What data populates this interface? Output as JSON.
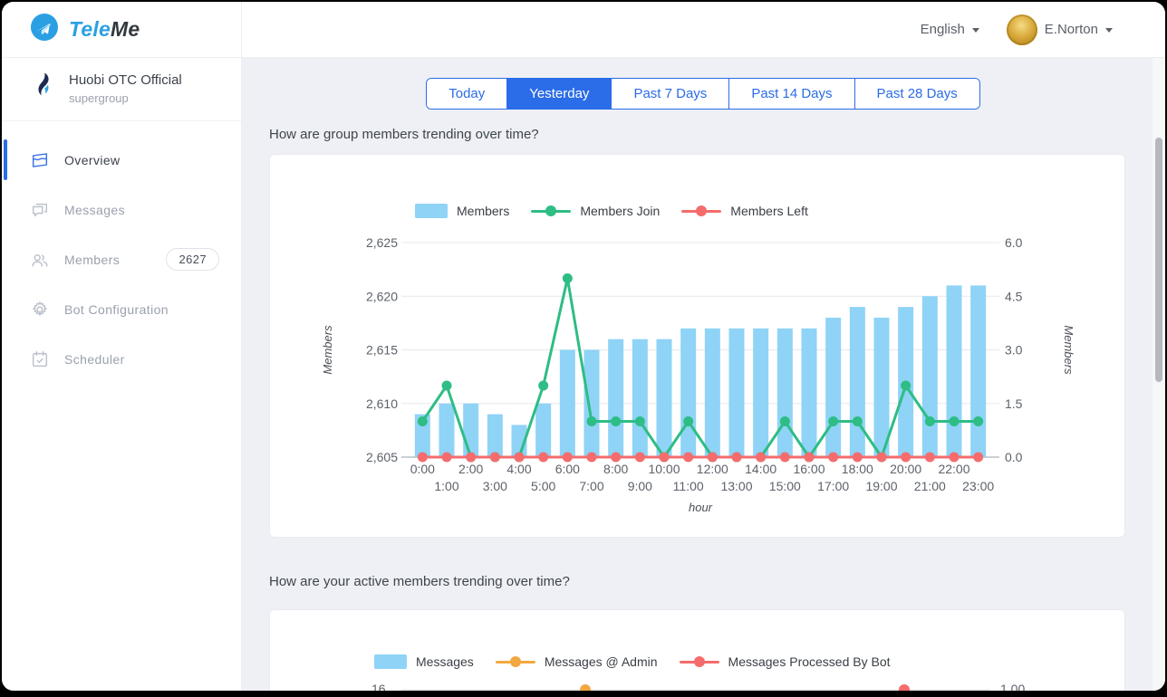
{
  "brand": {
    "name_primary": "Tele",
    "name_secondary": "Me"
  },
  "header": {
    "language_label": "English",
    "user_name": "E.Norton"
  },
  "sidebar": {
    "group_name": "Huobi OTC Official",
    "group_type": "supergroup",
    "items": [
      {
        "label": "Overview"
      },
      {
        "label": "Messages"
      },
      {
        "label": "Members",
        "badge": "2627"
      },
      {
        "label": "Bot Configuration"
      },
      {
        "label": "Scheduler"
      }
    ]
  },
  "tabs": [
    {
      "label": "Today"
    },
    {
      "label": "Yesterday"
    },
    {
      "label": "Past 7 Days"
    },
    {
      "label": "Past 14 Days"
    },
    {
      "label": "Past 28 Days"
    }
  ],
  "active_tab": "Yesterday",
  "sections": {
    "members_trend_title": "How are group members trending over time?",
    "active_members_trend_title": "How are your active members trending over time?"
  },
  "colors": {
    "accent_blue": "#2b6ce8",
    "bar_blue": "#8fd3f7",
    "line_green": "#2ebd84",
    "line_red": "#f56c6c",
    "line_orange": "#f2a840"
  },
  "chart_data": [
    {
      "type": "bar",
      "combo": "bar+line",
      "x": [
        "0:00",
        "1:00",
        "2:00",
        "3:00",
        "4:00",
        "5:00",
        "6:00",
        "7:00",
        "8:00",
        "9:00",
        "10:00",
        "11:00",
        "12:00",
        "13:00",
        "14:00",
        "15:00",
        "16:00",
        "17:00",
        "18:00",
        "19:00",
        "20:00",
        "21:00",
        "22:00",
        "23:00"
      ],
      "xlabel": "hour",
      "legend_position": "top",
      "grid": true,
      "left_axis": {
        "title": "Members",
        "range": [
          2605,
          2625
        ],
        "tick_labels": [
          "2,605",
          "2,610",
          "2,615",
          "2,620",
          "2,625"
        ]
      },
      "right_axis": {
        "title": "Members",
        "range": [
          0,
          6
        ],
        "tick_labels": [
          "0.0",
          "1.5",
          "3.0",
          "4.5",
          "6.0"
        ]
      },
      "series": [
        {
          "name": "Members",
          "kind": "bar",
          "axis": "left",
          "color": "#8fd3f7",
          "values": [
            2609,
            2610,
            2610,
            2609,
            2608,
            2610,
            2615,
            2615,
            2616,
            2616,
            2616,
            2617,
            2617,
            2617,
            2617,
            2617,
            2617,
            2618,
            2619,
            2618,
            2619,
            2620,
            2621,
            2621
          ]
        },
        {
          "name": "Members Join",
          "kind": "line",
          "axis": "right",
          "color": "#2ebd84",
          "values": [
            1,
            2,
            0,
            0,
            0,
            2,
            5,
            1,
            1,
            1,
            0,
            1,
            0,
            0,
            0,
            1,
            0,
            1,
            1,
            0,
            2,
            1,
            1,
            1
          ]
        },
        {
          "name": "Members Left",
          "kind": "line",
          "axis": "right",
          "color": "#f56c6c",
          "values": [
            0,
            0,
            0,
            0,
            0,
            0,
            0,
            0,
            0,
            0,
            0,
            0,
            0,
            0,
            0,
            0,
            0,
            0,
            0,
            0,
            0,
            0,
            0,
            0
          ]
        }
      ]
    },
    {
      "type": "bar",
      "combo": "bar+line",
      "legend_position": "top",
      "left_axis": {
        "visible_tick_label": "16"
      },
      "right_axis": {
        "visible_tick_label": "1.00"
      },
      "series": [
        {
          "name": "Messages",
          "kind": "bar",
          "color": "#8fd3f7"
        },
        {
          "name": "Messages @ Admin",
          "kind": "line",
          "color": "#f2a840",
          "visible_points": [
            {
              "x": "7:00",
              "right_value": "1.00"
            }
          ]
        },
        {
          "name": "Messages Processed By Bot",
          "kind": "line",
          "color": "#f56c6c",
          "visible_points": [
            {
              "x": "20:00",
              "right_value": "1.00"
            }
          ]
        }
      ]
    }
  ]
}
